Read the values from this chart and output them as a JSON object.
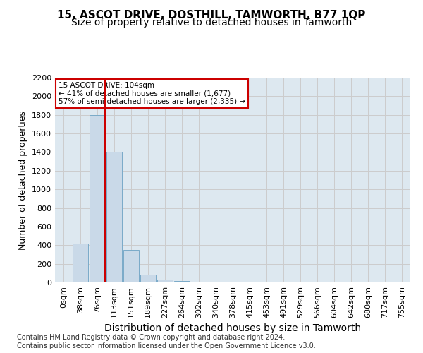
{
  "title": "15, ASCOT DRIVE, DOSTHILL, TAMWORTH, B77 1QP",
  "subtitle": "Size of property relative to detached houses in Tamworth",
  "xlabel": "Distribution of detached houses by size in Tamworth",
  "ylabel": "Number of detached properties",
  "bin_labels": [
    "0sqm",
    "38sqm",
    "76sqm",
    "113sqm",
    "151sqm",
    "189sqm",
    "227sqm",
    "264sqm",
    "302sqm",
    "340sqm",
    "378sqm",
    "415sqm",
    "453sqm",
    "491sqm",
    "529sqm",
    "566sqm",
    "604sqm",
    "642sqm",
    "680sqm",
    "717sqm",
    "755sqm"
  ],
  "bar_values": [
    10,
    420,
    1800,
    1400,
    350,
    80,
    30,
    15,
    0,
    0,
    0,
    0,
    0,
    0,
    0,
    0,
    0,
    0,
    0,
    0,
    0
  ],
  "bar_color": "#c9d9e8",
  "bar_edgecolor": "#7aaac8",
  "property_size": 104,
  "bin_width": 38,
  "vline_color": "#cc0000",
  "annotation_text": "15 ASCOT DRIVE: 104sqm\n← 41% of detached houses are smaller (1,677)\n57% of semi-detached houses are larger (2,335) →",
  "annotation_box_color": "#ffffff",
  "annotation_box_edgecolor": "#cc0000",
  "ylim": [
    0,
    2200
  ],
  "yticks": [
    0,
    200,
    400,
    600,
    800,
    1000,
    1200,
    1400,
    1600,
    1800,
    2000,
    2200
  ],
  "grid_color": "#cccccc",
  "plot_bg_color": "#dde8f0",
  "footnote": "Contains HM Land Registry data © Crown copyright and database right 2024.\nContains public sector information licensed under the Open Government Licence v3.0.",
  "title_fontsize": 11,
  "subtitle_fontsize": 10,
  "xlabel_fontsize": 10,
  "ylabel_fontsize": 9,
  "tick_fontsize": 8,
  "footnote_fontsize": 7
}
